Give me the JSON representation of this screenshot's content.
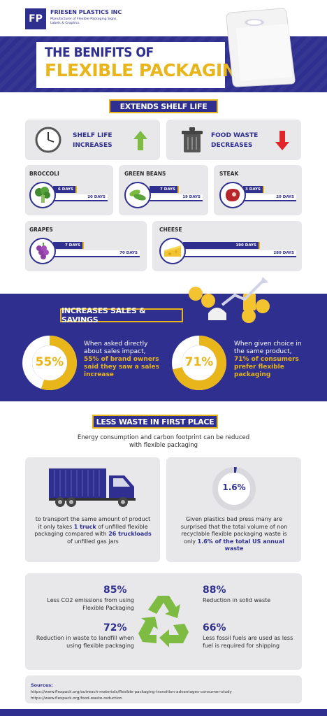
{
  "header": {
    "logo_initials": "FP",
    "company": "FRIESEN PLASTICS INC",
    "tagline": "Manufacturer of Flexible Packaging Signs, Labels & Graphics",
    "title_line1": "THE BENIFITS OF",
    "title_line2": "FLEXIBLE PACKAGING"
  },
  "shelf_life": {
    "section_title": "EXTENDS SHELF LIFE",
    "increase_label_1": "SHELF LIFE",
    "increase_label_2": "INCREASES",
    "decrease_label_1": "FOOD WASTE",
    "decrease_label_2": "DECREASES",
    "foods": [
      {
        "name": "BROCCOLI",
        "short": "6 DAYS",
        "long": "20 DAYS",
        "icon": "broccoli-icon"
      },
      {
        "name": "GREEN BEANS",
        "short": "7 DAYS",
        "long": "19 DAYS",
        "icon": "green-beans-icon"
      },
      {
        "name": "STEAK",
        "short": "3 DAYS",
        "long": "20 DAYS",
        "icon": "steak-icon"
      },
      {
        "name": "GRAPES",
        "short": "7 DAYS",
        "long": "70 DAYS",
        "icon": "grapes-icon"
      },
      {
        "name": "CHEESE",
        "short": "190 DAYS",
        "long": "280 DAYS",
        "icon": "cheese-icon"
      }
    ]
  },
  "sales": {
    "section_title": "INCREASES SALES & SAVINGS",
    "left_value": "55%",
    "left_fraction": 0.55,
    "left_text": "When asked directly about sales impact,",
    "left_highlight": "55% of brand owners said they saw a sales increase",
    "right_value": "71%",
    "right_fraction": 0.71,
    "right_text": "When given choice in the same product,",
    "right_highlight": "71% of consumers prefer flexible packaging"
  },
  "waste": {
    "section_title": "LESS WASTE IN FIRST PLACE",
    "intro": "Energy consumption and carbon footprint can be reduced with flexible packaging",
    "truck_text_1": "to transport the same amount of product it only takes",
    "truck_highlight_1": "1 truck",
    "truck_text_2": "of unfilled flexible packaging compared with",
    "truck_highlight_2": "26 truckloads",
    "truck_text_3": "of unfilled gas jars",
    "donut_value": "1.6%",
    "donut_fraction": 0.016,
    "donut_text": "Given plastics bad press many are surprised that the total volume of non recyclable flexible packaging waste is only",
    "donut_highlight": "1.6% of the total US annual waste"
  },
  "stats": [
    {
      "value": "85%",
      "text": "Less CO2 emissions from using Flexible Packaging"
    },
    {
      "value": "88%",
      "text": "Reduction in solid waste"
    },
    {
      "value": "72%",
      "text": "Reduction in waste to landfill when using flexible packaging"
    },
    {
      "value": "66%",
      "text": "Less fossil fuels are used as less fuel is required for shipping"
    }
  ],
  "sources": {
    "title": "Sources:",
    "line1": "https://www.flexpack.org/outreach-materials/flexible-packaging-transition-advantages-consumer-study",
    "line2": "https://www.flexpack.org/food-waste-reduction"
  },
  "colors": {
    "navy": "#2e2f8f",
    "gold": "#e8b51a",
    "green": "#7dbb42",
    "red": "#e0262b",
    "gray": "#e8e8ea"
  }
}
